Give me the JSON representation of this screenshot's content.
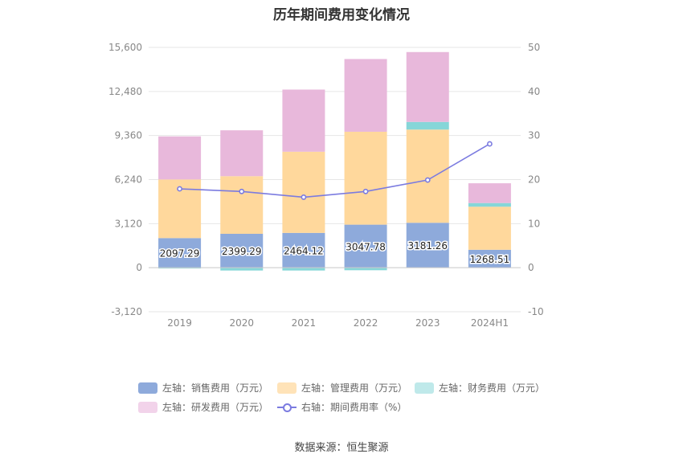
{
  "chart_data": {
    "type": "bar",
    "title": "历年期间费用变化情况",
    "categories": [
      "2019",
      "2020",
      "2021",
      "2022",
      "2023",
      "2024H1"
    ],
    "left_axis": {
      "min": -3120,
      "max": 15600,
      "ticks": [
        "-3,120",
        "0",
        "3,120",
        "6,240",
        "9,360",
        "12,480",
        "15,600"
      ]
    },
    "right_axis": {
      "min": -10,
      "max": 50,
      "ticks": [
        "-10",
        "0",
        "10",
        "20",
        "30",
        "40",
        "50"
      ]
    },
    "series": [
      {
        "name": "左轴：销售费用（万元）",
        "color": "#8eaadb",
        "values": [
          2097.29,
          2399.29,
          2464.12,
          3047.78,
          3181.26,
          1268.51
        ],
        "labels": [
          "2097.29",
          "2399.29",
          "2464.12",
          "3047.78",
          "3181.26",
          "1268.51"
        ]
      },
      {
        "name": "左轴：管理费用（万元）",
        "color": "#ffd89c",
        "values": [
          4150,
          4080,
          5750,
          6580,
          6600,
          3050
        ]
      },
      {
        "name": "左轴：财务费用（万元）",
        "color": "#86d6d8",
        "values": [
          -40,
          -200,
          -200,
          -180,
          540,
          260
        ]
      },
      {
        "name": "左轴：研发费用（万元）",
        "color": "#e8b8db",
        "values": [
          3050,
          3250,
          4400,
          5150,
          4950,
          1400
        ]
      },
      {
        "name": "右轴：期间费用率（%）",
        "color": "#7b7be0",
        "axis": "right",
        "values": [
          17.9,
          17.3,
          16.0,
          17.3,
          19.9,
          28.1
        ]
      }
    ],
    "grid": true,
    "legend_position": "bottom"
  },
  "source": "数据来源：恒生聚源"
}
